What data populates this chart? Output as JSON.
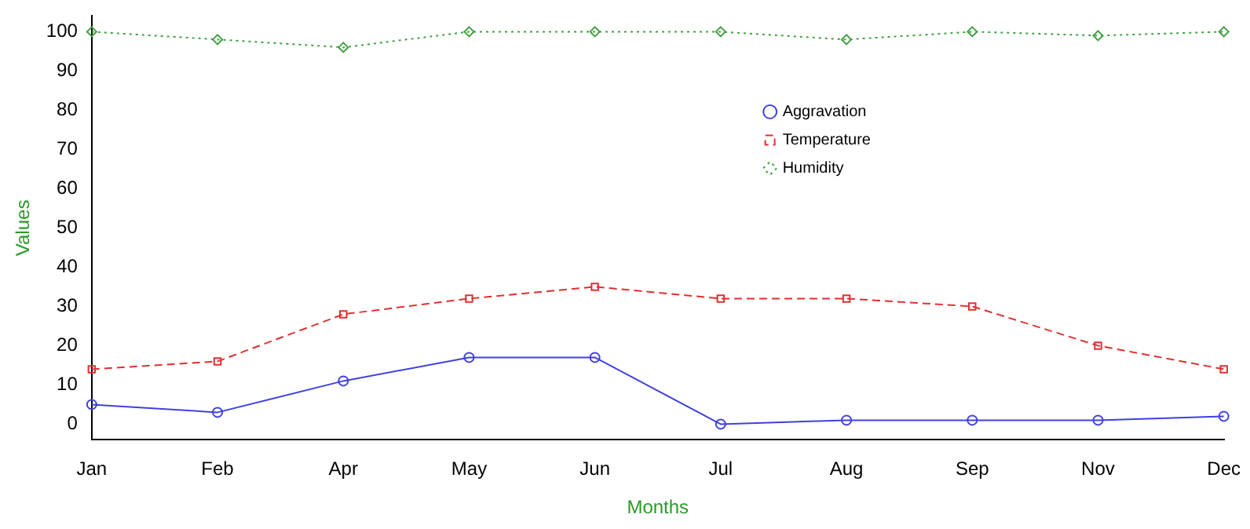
{
  "chart_data": {
    "type": "line",
    "xlabel": "Months",
    "ylabel": "Values",
    "categories": [
      "Jan",
      "Feb",
      "Apr",
      "May",
      "Jun",
      "Jul",
      "Aug",
      "Sep",
      "Nov",
      "Dec"
    ],
    "series": [
      {
        "name": "Aggravation",
        "color": "#4040e0",
        "marker": "circle",
        "line_style": "solid",
        "values": [
          5,
          3,
          11,
          17,
          17,
          0,
          1,
          1,
          1,
          2
        ]
      },
      {
        "name": "Temperature",
        "color": "#e03030",
        "marker": "square",
        "line_style": "dashed",
        "values": [
          14,
          16,
          28,
          32,
          35,
          32,
          32,
          30,
          20,
          14
        ]
      },
      {
        "name": "Humidity",
        "color": "#40a040",
        "marker": "diamond",
        "line_style": "dotted",
        "values": [
          100,
          98,
          96,
          100,
          100,
          100,
          98,
          100,
          99,
          100
        ]
      }
    ],
    "ylim": [
      -4,
      104
    ],
    "yticks": [
      0,
      10,
      20,
      30,
      40,
      50,
      60,
      70,
      80,
      90,
      100
    ],
    "grid": false,
    "legend": "top right"
  }
}
